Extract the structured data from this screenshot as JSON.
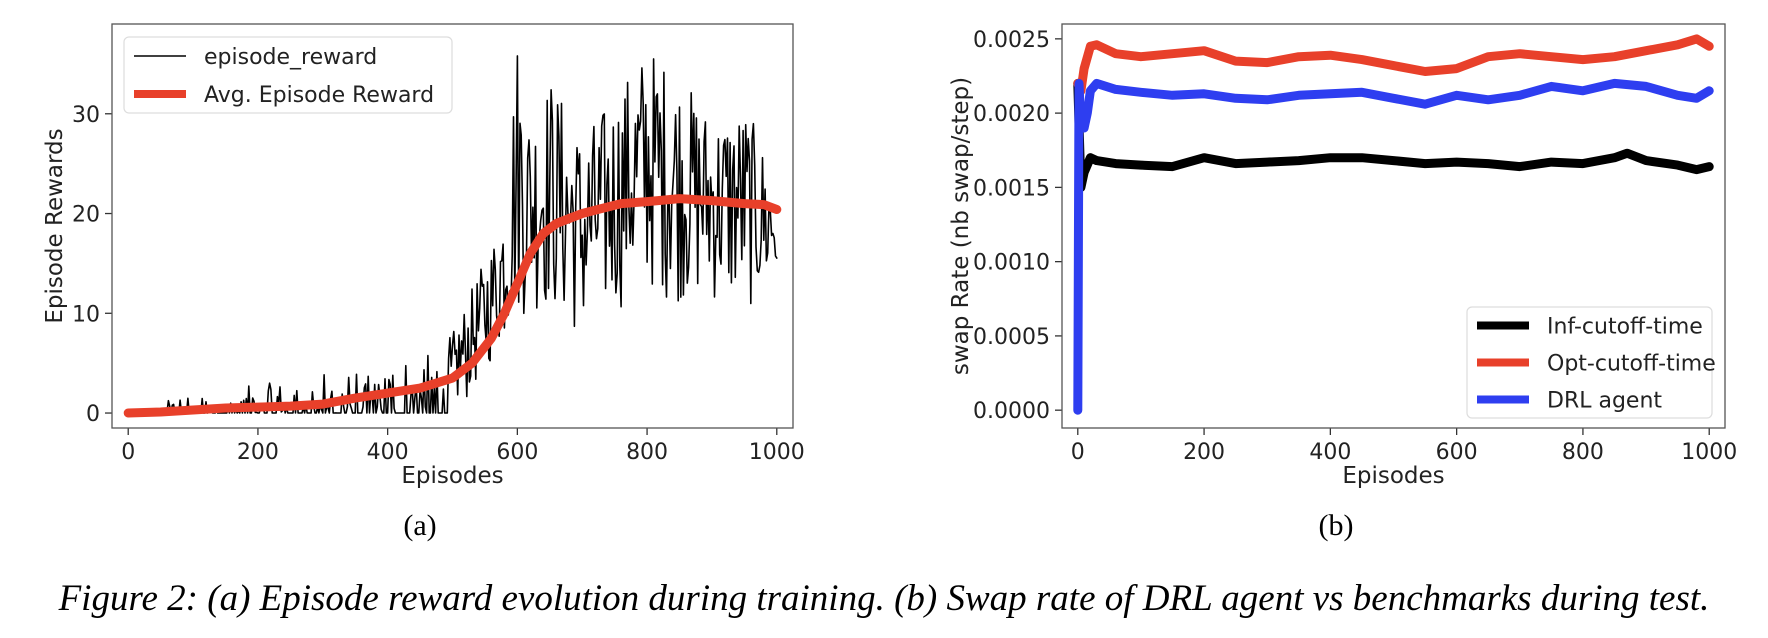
{
  "caption": {
    "prefix": "Figure 2",
    "text": ": (a) Episode reward evolution during training. (b) Swap rate of DRL agent vs benchmarks during test."
  },
  "chart_data": [
    {
      "type": "line",
      "sublabel": "(a)",
      "xlabel": "Episodes",
      "ylabel": "Episode Rewards",
      "xlim": [
        -25,
        1025
      ],
      "ylim": [
        -1.5,
        39
      ],
      "xticks": [
        0,
        200,
        400,
        600,
        800,
        1000
      ],
      "yticks": [
        0,
        10,
        20,
        30
      ],
      "legend_position": "top-left",
      "series": [
        {
          "name": "episode_reward",
          "color": "#000000",
          "envelope_x": [
            0,
            50,
            100,
            150,
            200,
            250,
            300,
            350,
            400,
            450,
            500,
            520,
            540,
            560,
            580,
            600,
            620,
            650,
            700,
            750,
            800,
            850,
            900,
            950,
            1000
          ],
          "envelope_low": [
            0,
            0,
            0,
            0,
            0,
            0,
            0,
            0,
            0,
            0,
            0,
            1,
            3,
            5,
            7,
            9,
            10,
            10,
            7,
            10,
            12,
            11,
            11,
            10,
            12
          ],
          "envelope_high": [
            0,
            1,
            2,
            2,
            3,
            3,
            4,
            4,
            5,
            6,
            8,
            11,
            14,
            17,
            22,
            38,
            30,
            34,
            28,
            32,
            37,
            34,
            30,
            31,
            24
          ]
        },
        {
          "name": "Avg. Episode Reward",
          "color": "#e8402a",
          "x": [
            0,
            50,
            100,
            150,
            200,
            250,
            300,
            350,
            400,
            450,
            500,
            530,
            560,
            580,
            600,
            620,
            640,
            660,
            680,
            700,
            730,
            760,
            800,
            850,
            900,
            950,
            980,
            1000
          ],
          "y": [
            0,
            0.1,
            0.3,
            0.5,
            0.6,
            0.7,
            0.9,
            1.5,
            2.0,
            2.5,
            3.5,
            5.0,
            7.5,
            10,
            13,
            16,
            18,
            19,
            19.5,
            20,
            20.5,
            21,
            21.2,
            21.5,
            21.3,
            21.0,
            20.9,
            20.4
          ]
        }
      ]
    },
    {
      "type": "line",
      "sublabel": "(b)",
      "xlabel": "Episodes",
      "ylabel": "swap Rate (nb swap/step)",
      "xlim": [
        -25,
        1025
      ],
      "ylim": [
        -0.00012,
        0.0026
      ],
      "xticks": [
        0,
        200,
        400,
        600,
        800,
        1000
      ],
      "yticks": [
        0.0,
        0.0005,
        0.001,
        0.0015,
        0.002,
        0.0025
      ],
      "ytick_labels": [
        "0.0000",
        "0.0005",
        "0.0010",
        "0.0015",
        "0.0020",
        "0.0025"
      ],
      "legend_position": "bottom-right",
      "series": [
        {
          "name": "Inf-cutoff-time",
          "color": "#000000",
          "x": [
            0,
            5,
            10,
            20,
            30,
            60,
            100,
            150,
            200,
            250,
            300,
            350,
            400,
            450,
            500,
            550,
            600,
            650,
            700,
            750,
            800,
            850,
            870,
            900,
            950,
            980,
            1000
          ],
          "y": [
            0.0022,
            0.0015,
            0.0016,
            0.0017,
            0.00168,
            0.00166,
            0.00165,
            0.00164,
            0.0017,
            0.00166,
            0.00167,
            0.00168,
            0.0017,
            0.0017,
            0.00168,
            0.00166,
            0.00167,
            0.00166,
            0.00164,
            0.00167,
            0.00166,
            0.0017,
            0.00173,
            0.00168,
            0.00165,
            0.00162,
            0.00164
          ]
        },
        {
          "name": "Opt-cutoff-time",
          "color": "#e8402a",
          "x": [
            0,
            5,
            10,
            20,
            30,
            60,
            100,
            150,
            200,
            250,
            300,
            350,
            400,
            450,
            500,
            550,
            600,
            650,
            700,
            750,
            800,
            850,
            900,
            950,
            980,
            1000
          ],
          "y": [
            0.0022,
            0.00215,
            0.0023,
            0.00245,
            0.00246,
            0.0024,
            0.00238,
            0.0024,
            0.00242,
            0.00235,
            0.00234,
            0.00238,
            0.00239,
            0.00236,
            0.00232,
            0.00228,
            0.0023,
            0.00238,
            0.0024,
            0.00238,
            0.00236,
            0.00238,
            0.00242,
            0.00246,
            0.0025,
            0.00245
          ]
        },
        {
          "name": "DRL agent",
          "color": "#2e3ef0",
          "x": [
            0,
            2,
            5,
            10,
            15,
            20,
            30,
            60,
            100,
            150,
            200,
            250,
            300,
            350,
            400,
            450,
            500,
            550,
            600,
            650,
            700,
            750,
            800,
            850,
            900,
            950,
            980,
            1000
          ],
          "y": [
            0.0,
            0.0022,
            0.0019,
            0.0019,
            0.002,
            0.00215,
            0.0022,
            0.00216,
            0.00214,
            0.00212,
            0.00213,
            0.0021,
            0.00209,
            0.00212,
            0.00213,
            0.00214,
            0.0021,
            0.00206,
            0.00212,
            0.00209,
            0.00212,
            0.00218,
            0.00215,
            0.0022,
            0.00218,
            0.00212,
            0.0021,
            0.00215
          ]
        }
      ]
    }
  ]
}
